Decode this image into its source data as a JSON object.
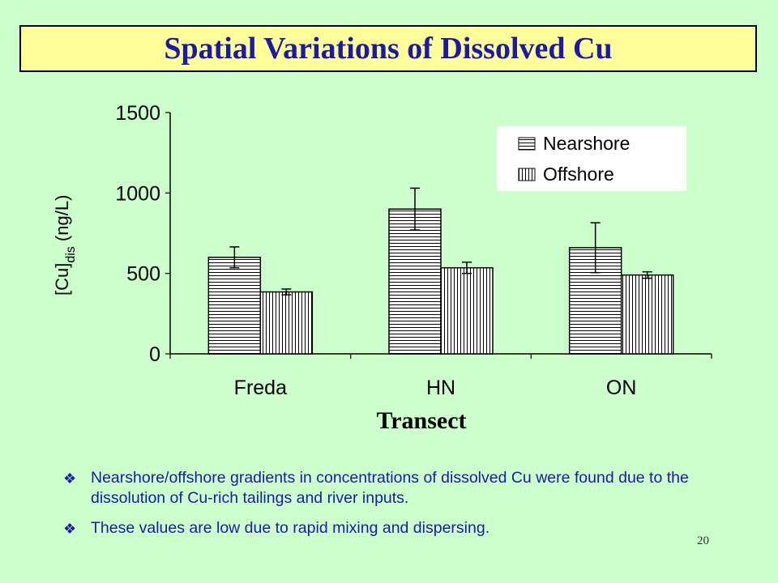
{
  "title": "Spatial Variations of Dissolved Cu",
  "chart_data": {
    "type": "bar",
    "categories": [
      "Freda",
      "HN",
      "ON"
    ],
    "series": [
      {
        "name": "Nearshore",
        "values": [
          600,
          900,
          660
        ],
        "errors": [
          65,
          130,
          155
        ],
        "pattern": "horizontal"
      },
      {
        "name": "Offshore",
        "values": [
          385,
          535,
          490
        ],
        "errors": [
          18,
          35,
          20
        ],
        "pattern": "vertical"
      }
    ],
    "ylim": [
      0,
      1500
    ],
    "yticks": [
      "0",
      "500",
      "1000",
      "1500"
    ],
    "ylabel_parts": {
      "main": "[Cu]",
      "sub": "dis",
      "unit": " (ng/L)"
    },
    "xlabel": "Transect",
    "legend_position": "top-right",
    "grid": false
  },
  "bullets": [
    "Nearshore/offshore gradients in concentrations of dissolved Cu were found due to the dissolution of Cu-rich tailings and river inputs.",
    "These values are low due to rapid mixing and dispersing."
  ],
  "bullet_icon": "diamond-bullet-icon",
  "page_number": "20"
}
